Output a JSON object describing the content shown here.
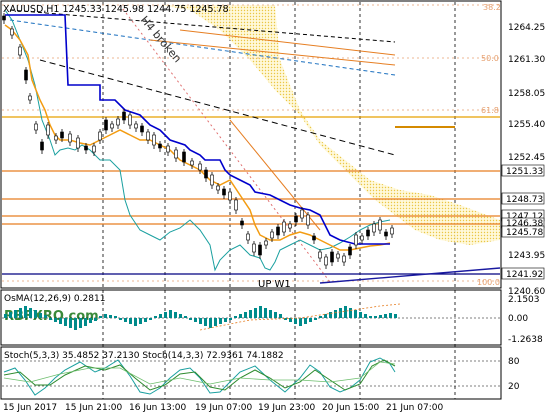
{
  "symbol_bar": {
    "text": "XAUUSD,H1  1245.33 1245.98 1244.75 1245.78"
  },
  "annotations": {
    "h4_broken": "H4 broken",
    "up_w1": "UP W1"
  },
  "watermark": "RBFXRO.com",
  "fibo_labels": [
    "38.2",
    "50.0",
    "61.8",
    "100.0"
  ],
  "price_axis": {
    "ticks": [
      "1264.25",
      "1261.30",
      "1258.05",
      "1255.40",
      "1252.45",
      "1243.95",
      "1240.60"
    ],
    "boxes": [
      {
        "label": "1251.33",
        "color": "#ffffff",
        "text_color": "#000000"
      },
      {
        "label": "1248.73",
        "color": "#ffffff",
        "text_color": "#000000"
      },
      {
        "label": "1247.12",
        "color": "#ffffff",
        "text_color": "#000000"
      },
      {
        "label": "1246.38",
        "color": "#ffffff",
        "text_color": "#000000"
      },
      {
        "label": "1245.78",
        "color": "#ffffff",
        "text_color": "#000000"
      },
      {
        "label": "1241.92",
        "color": "#ffffff",
        "text_color": "#000000"
      }
    ]
  },
  "osma_panel": {
    "label": "OsMA(12,26,9) 0.2811",
    "ticks": [
      "2.1503",
      "0.00",
      "-1.2638"
    ]
  },
  "stoch_panel": {
    "label": "Stoch(5,3,3) 35.4852 37.2130  Stoch(14,3,3) 72.9361 74.1882",
    "ticks": [
      "80",
      "20"
    ]
  },
  "time_axis": [
    "15 Jun 2017",
    "15 Jun 21:00",
    "16 Jun 13:00",
    "19 Jun 07:00",
    "19 Jun 23:00",
    "20 Jun 15:00",
    "21 Jun 07:00"
  ],
  "colors": {
    "candles": "#000000",
    "ma_blue": "#0000cc",
    "ma_orange": "#f39c12",
    "ma_teal": "#1aa0a0",
    "ichimoku_cloud": "#f7e08a",
    "horizontal_levels": "#e67e22",
    "osma_bars": "#008b8b"
  }
}
